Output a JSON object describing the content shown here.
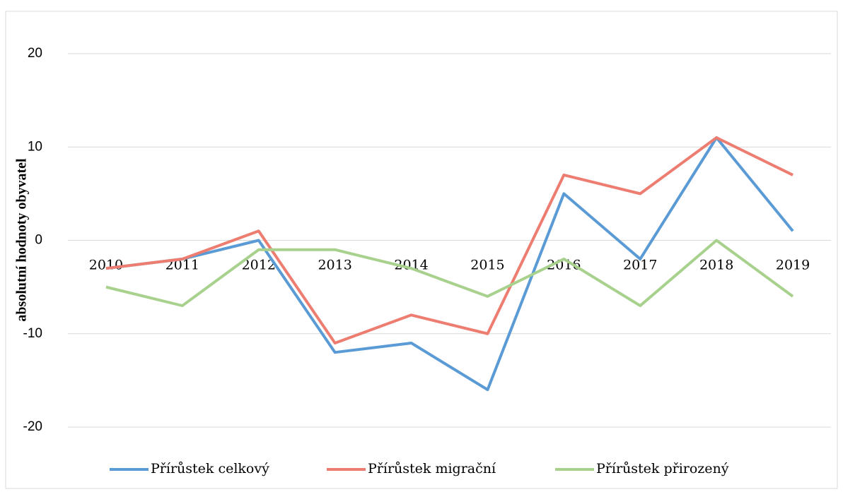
{
  "chart_data": {
    "type": "line",
    "y_axis_label": "absolutní hodnoty obyvatel",
    "categories": [
      "2010",
      "2011",
      "2012",
      "2013",
      "2014",
      "2015",
      "2016",
      "2017",
      "2018",
      "2019"
    ],
    "series": [
      {
        "name": "Přírůstek celkový",
        "color": "#5b9bd5",
        "values": [
          -3,
          -2,
          0,
          -12,
          -11,
          -16,
          5,
          -2,
          11,
          1
        ]
      },
      {
        "name": "Přírůstek migrační",
        "color": "#ed7d70",
        "values": [
          -3,
          -2,
          1,
          -11,
          -8,
          -10,
          7,
          5,
          11,
          7
        ]
      },
      {
        "name": "Přírůstek přirozený",
        "color": "#a9d18e",
        "values": [
          -5,
          -7,
          -1,
          -1,
          -3,
          -6,
          -2,
          -7,
          0,
          -6
        ]
      }
    ],
    "ylim": [
      -20,
      20
    ],
    "yticks": [
      -20,
      -10,
      0,
      10,
      20
    ],
    "grid": true,
    "legend": "bottom"
  }
}
